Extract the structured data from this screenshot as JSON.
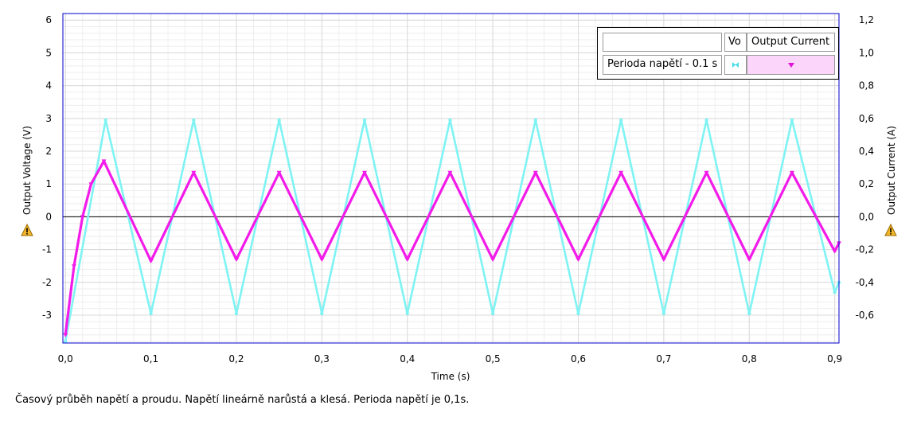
{
  "caption": "Časový průběh napětí a proudu. Napětí lineárně narůstá a klesá. Perioda napětí je 0,1s.",
  "colors": {
    "voltage": "#7ff3f3",
    "current": "#f21bea",
    "grid": "#d9d9d9",
    "zero_line": "#000000",
    "frame": "#0000cc",
    "warning": "#e6a817"
  },
  "legend": {
    "header_blank": "",
    "header_vo": "Vo",
    "header_current": "Output Current",
    "row_label": "Perioda napětí - 0.1 s"
  },
  "icons": {
    "left_axis": "warning-icon",
    "right_axis": "warning-icon",
    "legend_vo": "voltage-marker-icon",
    "legend_current": "current-marker-icon"
  },
  "chart_data": {
    "type": "line",
    "title": "",
    "xlabel": "Time (s)",
    "ylabel_left": "Output Voltage (V)",
    "ylabel_right": "Output Current (A)",
    "xlim": [
      -0.003,
      0.905
    ],
    "ylim_left": [
      -3.85,
      6.2
    ],
    "ylim_right": [
      -0.77,
      1.24
    ],
    "grid": true,
    "legend_position": "top-right",
    "x_ticks": [
      "0,0",
      "0,1",
      "0,2",
      "0,3",
      "0,4",
      "0,5",
      "0,6",
      "0,7",
      "0,8",
      "0,9"
    ],
    "x_tick_values": [
      0,
      0.1,
      0.2,
      0.3,
      0.4,
      0.5,
      0.6,
      0.7,
      0.8,
      0.9
    ],
    "y_left_ticks": [
      "6",
      "5",
      "4",
      "3",
      "2",
      "1",
      "0",
      "-1",
      "-2",
      "-3"
    ],
    "y_left_tick_values": [
      6,
      5,
      4,
      3,
      2,
      1,
      0,
      -1,
      -2,
      -3
    ],
    "y_right_ticks": [
      "1,2",
      "1,0",
      "0,8",
      "0,6",
      "0,4",
      "0,2",
      "0,0",
      "-0,2",
      "-0,4",
      "-0,6"
    ],
    "y_right_tick_values": [
      1.2,
      1.0,
      0.8,
      0.6,
      0.4,
      0.2,
      0.0,
      -0.2,
      -0.4,
      -0.6
    ],
    "series": [
      {
        "name": "Vo",
        "axis": "left",
        "x": [
          0.0,
          0.047,
          0.1,
          0.15,
          0.2,
          0.25,
          0.3,
          0.35,
          0.4,
          0.45,
          0.5,
          0.55,
          0.6,
          0.65,
          0.7,
          0.75,
          0.8,
          0.85,
          0.9,
          0.905
        ],
        "values": [
          -3.8,
          2.95,
          -2.95,
          2.95,
          -2.95,
          2.95,
          -2.95,
          2.95,
          -2.95,
          2.95,
          -2.95,
          2.95,
          -2.95,
          2.95,
          -2.95,
          2.95,
          -2.95,
          2.95,
          -2.3,
          -2.0
        ]
      },
      {
        "name": "Output Current",
        "axis": "right",
        "x": [
          0.0,
          0.01,
          0.02,
          0.03,
          0.045,
          0.1,
          0.15,
          0.2,
          0.25,
          0.3,
          0.35,
          0.4,
          0.45,
          0.5,
          0.55,
          0.6,
          0.65,
          0.7,
          0.75,
          0.8,
          0.85,
          0.9,
          0.905
        ],
        "values": [
          -0.72,
          -0.3,
          0.0,
          0.2,
          0.34,
          -0.27,
          0.27,
          -0.26,
          0.27,
          -0.26,
          0.27,
          -0.26,
          0.27,
          -0.26,
          0.27,
          -0.26,
          0.27,
          -0.26,
          0.27,
          -0.26,
          0.27,
          -0.21,
          -0.16
        ]
      }
    ]
  }
}
